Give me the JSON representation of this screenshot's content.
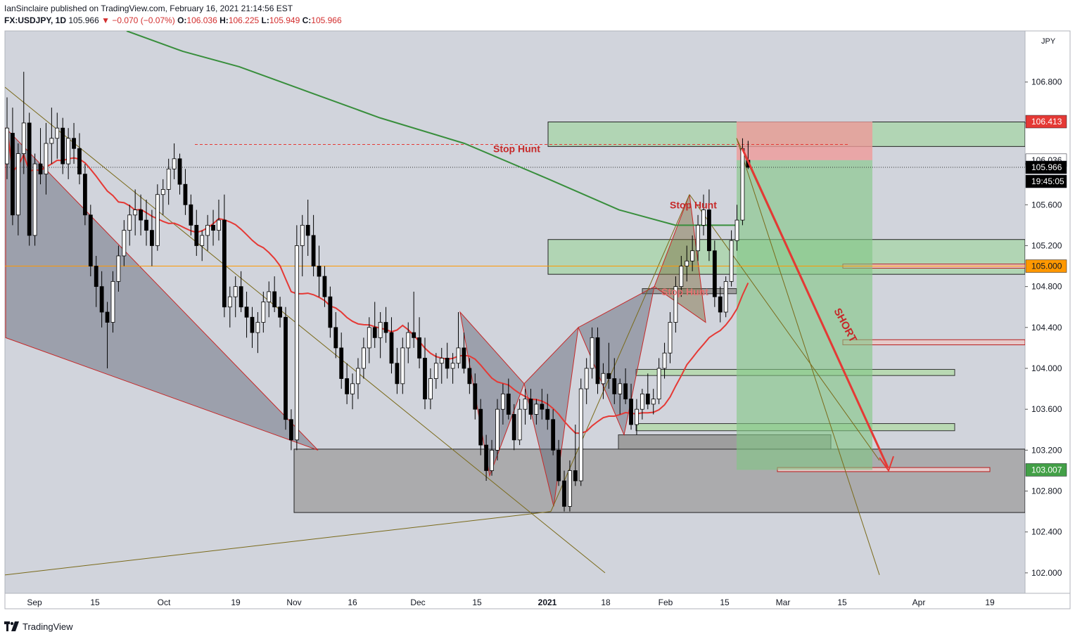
{
  "header": {
    "line1": "IanSinclaire published on TradingView.com, February 16, 2021 21:14:56 EST",
    "symbol": "FX:USDJPY, 1D",
    "last": "105.966",
    "change": "▼ −0.070 (−0.07%)",
    "o_label": "O:",
    "o": "106.036",
    "h_label": "H:",
    "h": "106.225",
    "l_label": "L:",
    "l": "105.949",
    "c_label": "C:",
    "c": "105.966"
  },
  "footer": {
    "brand": "TradingView"
  },
  "colors": {
    "background": "#d1d4dc",
    "ma_red": "#e53935",
    "ma_green": "#388e3c",
    "zone_green": "#a5d6a7",
    "zone_gray": "#9e9e9e",
    "target_box": "#81c784",
    "stop_box": "#ef9a9a",
    "short_arrow": "#e53935",
    "level_orange": "#ff9800"
  },
  "chart_data": {
    "type": "candlestick",
    "symbol": "FX:USDJPY",
    "timeframe": "1D",
    "currency": "JPY",
    "ylim": [
      101.8,
      107.3
    ],
    "y_ticks": [
      "106.800",
      "106.400",
      "106.000",
      "105.600",
      "105.200",
      "104.800",
      "104.400",
      "104.000",
      "103.600",
      "103.200",
      "102.800",
      "102.400",
      "102.000"
    ],
    "x_ticks": [
      "Sep",
      "15",
      "Oct",
      "19",
      "Nov",
      "16",
      "Dec",
      "15",
      "2021",
      "18",
      "Feb",
      "15",
      "Mar",
      "15",
      "Apr",
      "19"
    ],
    "price_badges": [
      {
        "label": "106.413",
        "value": 106.413,
        "kind": "stop"
      },
      {
        "label": "106.036",
        "value": 106.036,
        "kind": "open"
      },
      {
        "label": "105.966",
        "value": 105.966,
        "kind": "last"
      },
      {
        "label": "19:45:05",
        "kind": "countdown"
      },
      {
        "label": "105.000",
        "value": 105.0,
        "kind": "level"
      },
      {
        "label": "103.007",
        "value": 103.007,
        "kind": "target"
      }
    ],
    "annotations": [
      {
        "text": "Stop Hunt",
        "price": 106.15
      },
      {
        "text": "Stop Hunt",
        "price": 105.6
      },
      {
        "text": "Stop Hunt",
        "price": 104.75
      },
      {
        "text": "SHORT",
        "price": 104.6
      }
    ],
    "position": {
      "entry": 106.036,
      "stop": 106.413,
      "target": 103.007,
      "direction": "short"
    },
    "zones": [
      {
        "top": 106.41,
        "bottom": 106.17,
        "color": "green"
      },
      {
        "top": 105.26,
        "bottom": 104.92,
        "color": "green"
      },
      {
        "top": 103.21,
        "bottom": 102.59,
        "color": "gray"
      }
    ],
    "candles": [
      {
        "o": 106.0,
        "h": 106.65,
        "l": 105.85,
        "c": 106.35
      },
      {
        "o": 106.3,
        "h": 106.55,
        "l": 105.4,
        "c": 105.5
      },
      {
        "o": 105.5,
        "h": 106.2,
        "l": 105.3,
        "c": 106.1
      },
      {
        "o": 106.1,
        "h": 106.9,
        "l": 105.9,
        "c": 106.4
      },
      {
        "o": 106.4,
        "h": 106.5,
        "l": 105.2,
        "c": 105.3
      },
      {
        "o": 105.3,
        "h": 106.1,
        "l": 105.2,
        "c": 106.0
      },
      {
        "o": 106.0,
        "h": 106.35,
        "l": 105.8,
        "c": 105.9
      },
      {
        "o": 105.9,
        "h": 106.4,
        "l": 105.7,
        "c": 106.2
      },
      {
        "o": 106.2,
        "h": 106.55,
        "l": 106.0,
        "c": 106.25
      },
      {
        "o": 106.25,
        "h": 106.5,
        "l": 106.05,
        "c": 106.35
      },
      {
        "o": 106.35,
        "h": 106.45,
        "l": 105.9,
        "c": 106.0
      },
      {
        "o": 106.0,
        "h": 106.35,
        "l": 105.85,
        "c": 106.25
      },
      {
        "o": 106.25,
        "h": 106.4,
        "l": 106.0,
        "c": 106.15
      },
      {
        "o": 106.15,
        "h": 106.3,
        "l": 105.8,
        "c": 105.9
      },
      {
        "o": 105.9,
        "h": 106.0,
        "l": 105.4,
        "c": 105.5
      },
      {
        "o": 105.5,
        "h": 105.6,
        "l": 104.9,
        "c": 105.0
      },
      {
        "o": 105.0,
        "h": 105.1,
        "l": 104.6,
        "c": 104.8
      },
      {
        "o": 104.8,
        "h": 104.95,
        "l": 104.4,
        "c": 104.55
      },
      {
        "o": 104.55,
        "h": 104.65,
        "l": 104.0,
        "c": 104.45
      },
      {
        "o": 104.45,
        "h": 104.95,
        "l": 104.35,
        "c": 104.85
      },
      {
        "o": 104.85,
        "h": 105.2,
        "l": 104.75,
        "c": 105.1
      },
      {
        "o": 105.1,
        "h": 105.45,
        "l": 105.0,
        "c": 105.35
      },
      {
        "o": 105.35,
        "h": 105.6,
        "l": 105.2,
        "c": 105.5
      },
      {
        "o": 105.5,
        "h": 105.75,
        "l": 105.3,
        "c": 105.55
      },
      {
        "o": 105.55,
        "h": 105.7,
        "l": 105.3,
        "c": 105.45
      },
      {
        "o": 105.45,
        "h": 105.65,
        "l": 105.2,
        "c": 105.35
      },
      {
        "o": 105.35,
        "h": 105.55,
        "l": 105.0,
        "c": 105.2
      },
      {
        "o": 105.2,
        "h": 105.8,
        "l": 105.15,
        "c": 105.7
      },
      {
        "o": 105.7,
        "h": 105.85,
        "l": 105.5,
        "c": 105.75
      },
      {
        "o": 105.75,
        "h": 106.05,
        "l": 105.6,
        "c": 105.95
      },
      {
        "o": 105.95,
        "h": 106.2,
        "l": 105.85,
        "c": 106.05
      },
      {
        "o": 106.05,
        "h": 106.1,
        "l": 105.7,
        "c": 105.8
      },
      {
        "o": 105.8,
        "h": 105.95,
        "l": 105.5,
        "c": 105.6
      },
      {
        "o": 105.6,
        "h": 105.7,
        "l": 105.3,
        "c": 105.4
      },
      {
        "o": 105.4,
        "h": 105.55,
        "l": 105.1,
        "c": 105.2
      },
      {
        "o": 105.2,
        "h": 105.35,
        "l": 105.05,
        "c": 105.3
      },
      {
        "o": 105.3,
        "h": 105.5,
        "l": 105.15,
        "c": 105.4
      },
      {
        "o": 105.4,
        "h": 105.55,
        "l": 105.2,
        "c": 105.35
      },
      {
        "o": 105.35,
        "h": 105.65,
        "l": 105.25,
        "c": 105.45
      },
      {
        "o": 105.45,
        "h": 105.7,
        "l": 104.5,
        "c": 104.6
      },
      {
        "o": 104.6,
        "h": 104.8,
        "l": 104.4,
        "c": 104.7
      },
      {
        "o": 104.7,
        "h": 104.9,
        "l": 104.5,
        "c": 104.8
      },
      {
        "o": 104.8,
        "h": 104.95,
        "l": 104.55,
        "c": 104.6
      },
      {
        "o": 104.6,
        "h": 104.75,
        "l": 104.3,
        "c": 104.5
      },
      {
        "o": 104.5,
        "h": 104.6,
        "l": 104.2,
        "c": 104.35
      },
      {
        "o": 104.35,
        "h": 104.55,
        "l": 104.15,
        "c": 104.45
      },
      {
        "o": 104.45,
        "h": 104.75,
        "l": 104.35,
        "c": 104.65
      },
      {
        "o": 104.65,
        "h": 104.85,
        "l": 104.5,
        "c": 104.75
      },
      {
        "o": 104.75,
        "h": 104.9,
        "l": 104.55,
        "c": 104.6
      },
      {
        "o": 104.6,
        "h": 104.7,
        "l": 104.4,
        "c": 104.5
      },
      {
        "o": 104.5,
        "h": 104.6,
        "l": 103.4,
        "c": 103.5
      },
      {
        "o": 103.5,
        "h": 103.6,
        "l": 103.2,
        "c": 103.3
      },
      {
        "o": 103.3,
        "h": 105.4,
        "l": 103.2,
        "c": 105.2
      },
      {
        "o": 105.2,
        "h": 105.5,
        "l": 104.9,
        "c": 105.4
      },
      {
        "o": 105.4,
        "h": 105.65,
        "l": 105.1,
        "c": 105.3
      },
      {
        "o": 105.3,
        "h": 105.5,
        "l": 104.9,
        "c": 105.0
      },
      {
        "o": 105.0,
        "h": 105.2,
        "l": 104.7,
        "c": 104.9
      },
      {
        "o": 104.9,
        "h": 105.0,
        "l": 104.6,
        "c": 104.7
      },
      {
        "o": 104.7,
        "h": 104.8,
        "l": 104.3,
        "c": 104.4
      },
      {
        "o": 104.4,
        "h": 104.55,
        "l": 104.1,
        "c": 104.2
      },
      {
        "o": 104.2,
        "h": 104.35,
        "l": 103.8,
        "c": 103.9
      },
      {
        "o": 103.9,
        "h": 104.05,
        "l": 103.65,
        "c": 103.75
      },
      {
        "o": 103.75,
        "h": 103.95,
        "l": 103.6,
        "c": 103.85
      },
      {
        "o": 103.85,
        "h": 104.1,
        "l": 103.7,
        "c": 104.0
      },
      {
        "o": 104.0,
        "h": 104.3,
        "l": 103.9,
        "c": 104.2
      },
      {
        "o": 104.2,
        "h": 104.5,
        "l": 104.05,
        "c": 104.4
      },
      {
        "o": 104.4,
        "h": 104.65,
        "l": 104.2,
        "c": 104.3
      },
      {
        "o": 104.3,
        "h": 104.55,
        "l": 104.1,
        "c": 104.45
      },
      {
        "o": 104.45,
        "h": 104.6,
        "l": 104.25,
        "c": 104.35
      },
      {
        "o": 104.35,
        "h": 104.5,
        "l": 103.95,
        "c": 104.05
      },
      {
        "o": 104.05,
        "h": 104.2,
        "l": 103.75,
        "c": 103.85
      },
      {
        "o": 103.85,
        "h": 104.3,
        "l": 103.75,
        "c": 104.2
      },
      {
        "o": 104.2,
        "h": 104.45,
        "l": 104.05,
        "c": 104.35
      },
      {
        "o": 104.35,
        "h": 104.75,
        "l": 104.2,
        "c": 104.3
      },
      {
        "o": 104.3,
        "h": 104.5,
        "l": 104.0,
        "c": 104.1
      },
      {
        "o": 104.1,
        "h": 104.3,
        "l": 103.6,
        "c": 103.7
      },
      {
        "o": 103.7,
        "h": 104.0,
        "l": 103.6,
        "c": 103.9
      },
      {
        "o": 103.9,
        "h": 104.15,
        "l": 103.8,
        "c": 104.05
      },
      {
        "o": 104.05,
        "h": 104.2,
        "l": 103.85,
        "c": 104.1
      },
      {
        "o": 104.1,
        "h": 104.25,
        "l": 103.9,
        "c": 104.0
      },
      {
        "o": 104.0,
        "h": 104.15,
        "l": 103.85,
        "c": 104.05
      },
      {
        "o": 104.05,
        "h": 104.55,
        "l": 104.0,
        "c": 104.2
      },
      {
        "o": 104.2,
        "h": 104.35,
        "l": 103.95,
        "c": 104.0
      },
      {
        "o": 104.0,
        "h": 104.1,
        "l": 103.75,
        "c": 103.85
      },
      {
        "o": 103.85,
        "h": 103.95,
        "l": 103.5,
        "c": 103.6
      },
      {
        "o": 103.6,
        "h": 103.7,
        "l": 103.15,
        "c": 103.25
      },
      {
        "o": 103.25,
        "h": 103.35,
        "l": 102.9,
        "c": 103.0
      },
      {
        "o": 103.0,
        "h": 103.3,
        "l": 102.95,
        "c": 103.2
      },
      {
        "o": 103.2,
        "h": 103.7,
        "l": 103.1,
        "c": 103.6
      },
      {
        "o": 103.6,
        "h": 103.85,
        "l": 103.45,
        "c": 103.75
      },
      {
        "o": 103.75,
        "h": 103.9,
        "l": 103.5,
        "c": 103.55
      },
      {
        "o": 103.55,
        "h": 103.65,
        "l": 103.2,
        "c": 103.3
      },
      {
        "o": 103.3,
        "h": 103.7,
        "l": 103.25,
        "c": 103.6
      },
      {
        "o": 103.6,
        "h": 103.8,
        "l": 103.45,
        "c": 103.7
      },
      {
        "o": 103.7,
        "h": 103.8,
        "l": 103.5,
        "c": 103.55
      },
      {
        "o": 103.55,
        "h": 103.7,
        "l": 103.45,
        "c": 103.65
      },
      {
        "o": 103.65,
        "h": 103.8,
        "l": 103.5,
        "c": 103.6
      },
      {
        "o": 103.6,
        "h": 103.75,
        "l": 103.4,
        "c": 103.5
      },
      {
        "o": 103.5,
        "h": 103.6,
        "l": 103.15,
        "c": 103.2
      },
      {
        "o": 103.2,
        "h": 103.3,
        "l": 102.85,
        "c": 102.9
      },
      {
        "o": 102.9,
        "h": 103.0,
        "l": 102.6,
        "c": 102.65
      },
      {
        "o": 102.65,
        "h": 103.1,
        "l": 102.6,
        "c": 103.0
      },
      {
        "o": 103.0,
        "h": 103.45,
        "l": 102.85,
        "c": 102.9
      },
      {
        "o": 102.9,
        "h": 103.9,
        "l": 102.85,
        "c": 103.8
      },
      {
        "o": 103.8,
        "h": 104.1,
        "l": 103.65,
        "c": 104.0
      },
      {
        "o": 104.0,
        "h": 104.4,
        "l": 103.9,
        "c": 104.3
      },
      {
        "o": 104.3,
        "h": 104.4,
        "l": 103.75,
        "c": 103.85
      },
      {
        "o": 103.85,
        "h": 104.05,
        "l": 103.7,
        "c": 103.95
      },
      {
        "o": 103.95,
        "h": 104.25,
        "l": 103.8,
        "c": 103.9
      },
      {
        "o": 103.9,
        "h": 104.1,
        "l": 103.65,
        "c": 103.75
      },
      {
        "o": 103.75,
        "h": 103.9,
        "l": 103.55,
        "c": 103.85
      },
      {
        "o": 103.85,
        "h": 104.0,
        "l": 103.65,
        "c": 103.7
      },
      {
        "o": 103.7,
        "h": 103.85,
        "l": 103.4,
        "c": 103.45
      },
      {
        "o": 103.45,
        "h": 103.7,
        "l": 103.35,
        "c": 103.6
      },
      {
        "o": 103.6,
        "h": 103.8,
        "l": 103.5,
        "c": 103.75
      },
      {
        "o": 103.75,
        "h": 103.95,
        "l": 103.6,
        "c": 103.65
      },
      {
        "o": 103.65,
        "h": 103.8,
        "l": 103.55,
        "c": 103.7
      },
      {
        "o": 103.7,
        "h": 104.1,
        "l": 103.65,
        "c": 104.0
      },
      {
        "o": 104.0,
        "h": 104.25,
        "l": 103.9,
        "c": 104.15
      },
      {
        "o": 104.15,
        "h": 104.55,
        "l": 104.05,
        "c": 104.45
      },
      {
        "o": 104.45,
        "h": 104.9,
        "l": 104.35,
        "c": 104.8
      },
      {
        "o": 104.8,
        "h": 105.1,
        "l": 104.7,
        "c": 105.0
      },
      {
        "o": 105.0,
        "h": 105.2,
        "l": 104.85,
        "c": 105.05
      },
      {
        "o": 105.05,
        "h": 105.3,
        "l": 104.95,
        "c": 105.15
      },
      {
        "o": 105.15,
        "h": 105.5,
        "l": 105.05,
        "c": 105.4
      },
      {
        "o": 105.4,
        "h": 105.7,
        "l": 105.3,
        "c": 105.55
      },
      {
        "o": 105.55,
        "h": 105.75,
        "l": 105.05,
        "c": 105.15
      },
      {
        "o": 105.15,
        "h": 105.25,
        "l": 104.6,
        "c": 104.7
      },
      {
        "o": 104.7,
        "h": 104.8,
        "l": 104.45,
        "c": 104.55
      },
      {
        "o": 104.55,
        "h": 104.9,
        "l": 104.5,
        "c": 104.85
      },
      {
        "o": 104.85,
        "h": 105.35,
        "l": 104.8,
        "c": 105.25
      },
      {
        "o": 105.25,
        "h": 105.6,
        "l": 105.15,
        "c": 105.45
      },
      {
        "o": 105.45,
        "h": 106.25,
        "l": 105.4,
        "c": 106.15
      },
      {
        "o": 106.036,
        "h": 106.225,
        "l": 105.949,
        "c": 105.966
      }
    ]
  }
}
